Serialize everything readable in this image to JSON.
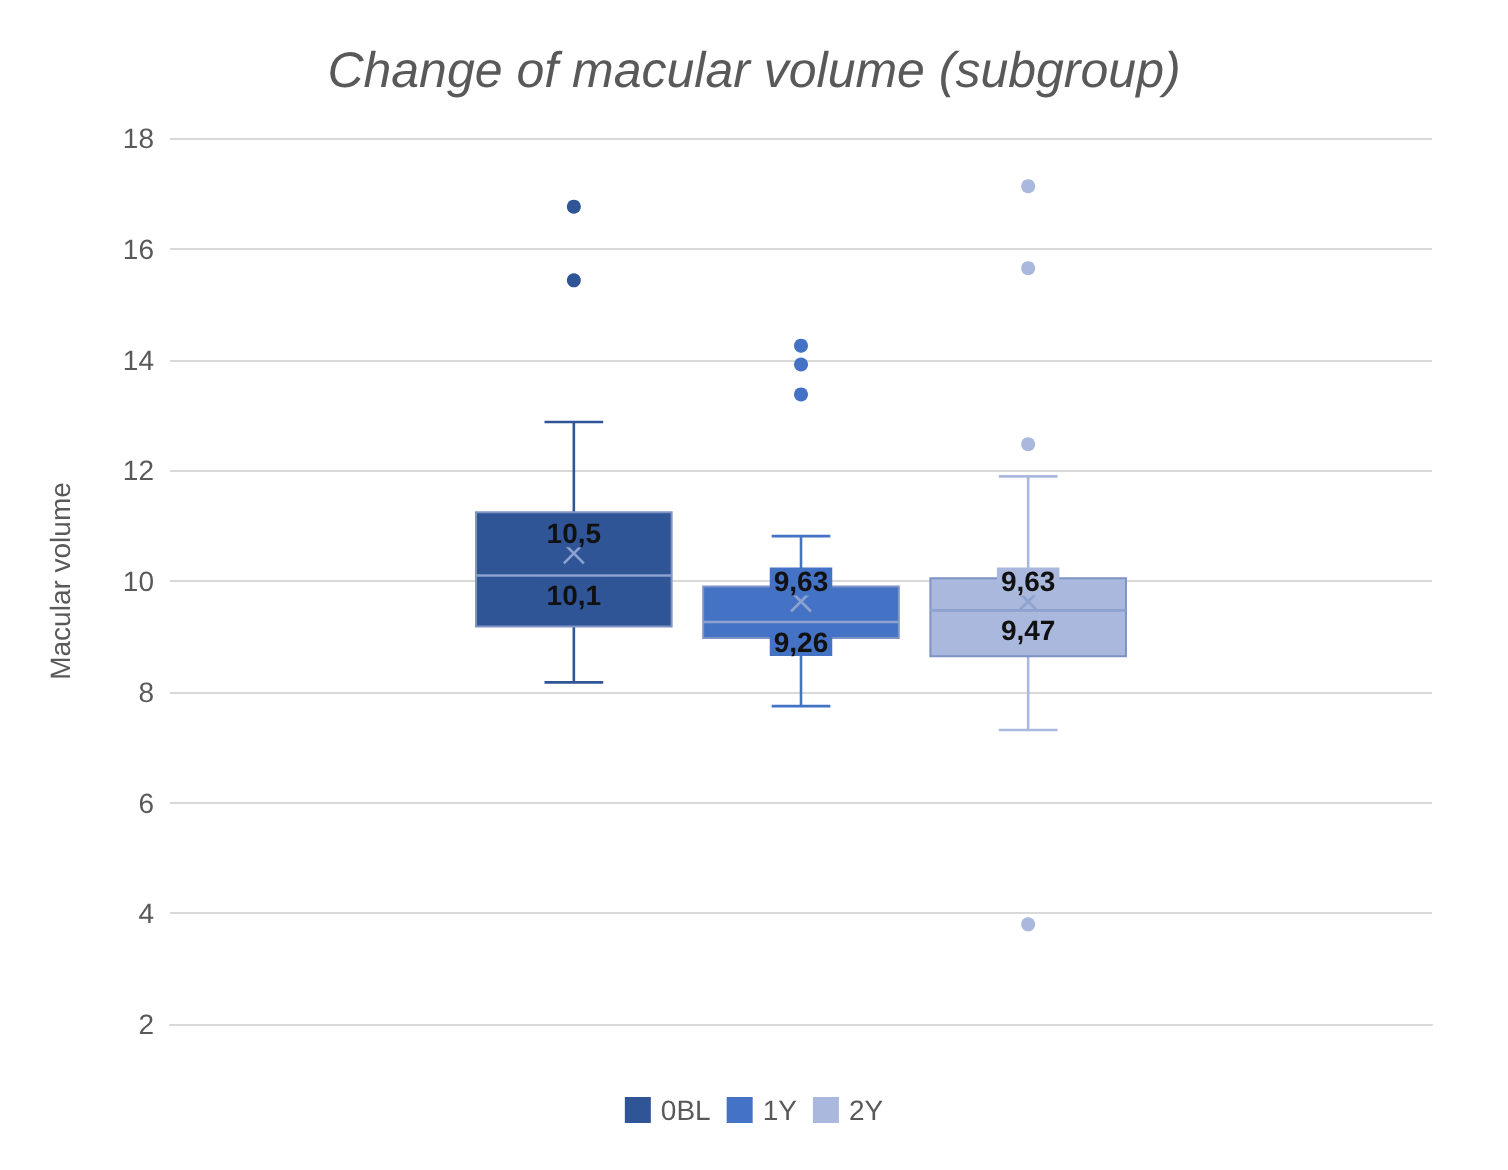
{
  "chart_data": {
    "type": "box",
    "title": "Change of macular volume (subgroup)",
    "ylabel": "Macular volume",
    "categories": [
      null
    ],
    "series": [
      {
        "name": "0BL",
        "color": "#2f5597",
        "boxes": [
          {
            "low": 8.17,
            "q1": 9.18,
            "median": 10.1,
            "q3": 11.24,
            "high": 12.87,
            "mean": 10.5,
            "outliers": [
              16.76,
              15.43
            ]
          }
        ]
      },
      {
        "name": "1Y",
        "color": "#4472c4",
        "boxes": [
          {
            "low": 7.74,
            "q1": 8.97,
            "median": 9.26,
            "q3": 9.9,
            "high": 10.81,
            "mean": 9.63,
            "outliers": [
              14.25,
              13.91,
              13.37
            ]
          }
        ]
      },
      {
        "name": "2Y",
        "color": "#a9b8dc",
        "boxes": [
          {
            "low": 7.31,
            "q1": 8.64,
            "median": 9.47,
            "q3": 10.05,
            "high": 11.89,
            "mean": 9.63,
            "outliers": [
              17.13,
              15.65,
              12.47,
              3.8
            ]
          }
        ]
      }
    ],
    "annotations": [
      "10,5",
      "10,1",
      "9,63",
      "9,26",
      "9,63",
      "9,47"
    ],
    "ylim": [
      2,
      18
    ],
    "yticks": [
      2,
      4,
      6,
      8,
      10,
      12,
      14,
      16,
      18
    ],
    "grid": "y",
    "legend": "bottom"
  }
}
